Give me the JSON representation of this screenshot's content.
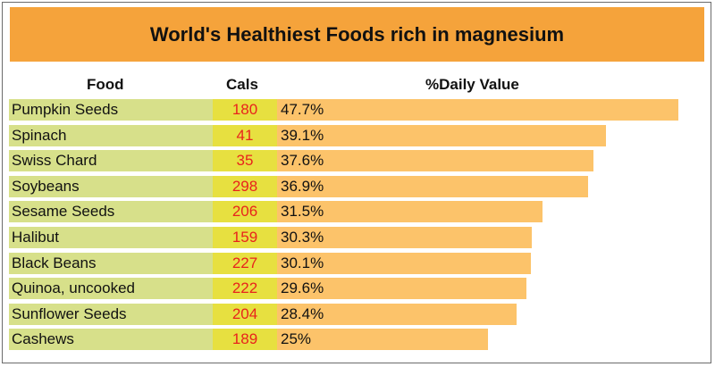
{
  "chart_data": {
    "type": "table",
    "title": "World's Healthiest Foods rich in magnesium",
    "columns": [
      "Food",
      "Cals",
      "%Daily Value"
    ],
    "rows": [
      {
        "food": "Pumpkin Seeds",
        "cals": "180",
        "dv_label": "47.7%",
        "dv": 47.7
      },
      {
        "food": "Spinach",
        "cals": "41",
        "dv_label": "39.1%",
        "dv": 39.1
      },
      {
        "food": "Swiss Chard",
        "cals": "35",
        "dv_label": "37.6%",
        "dv": 37.6
      },
      {
        "food": "Soybeans",
        "cals": "298",
        "dv_label": "36.9%",
        "dv": 36.9
      },
      {
        "food": "Sesame Seeds",
        "cals": "206",
        "dv_label": "31.5%",
        "dv": 31.5
      },
      {
        "food": "Halibut",
        "cals": "159",
        "dv_label": "30.3%",
        "dv": 30.3
      },
      {
        "food": "Black Beans",
        "cals": "227",
        "dv_label": "30.1%",
        "dv": 30.1
      },
      {
        "food": "Quinoa, uncooked",
        "cals": "222",
        "dv_label": "29.6%",
        "dv": 29.6
      },
      {
        "food": "Sunflower Seeds",
        "cals": "204",
        "dv_label": "28.4%",
        "dv": 28.4
      },
      {
        "food": "Cashews",
        "cals": "189",
        "dv_label": "25%",
        "dv": 25
      }
    ],
    "colors": {
      "title_bg": "#f5a33b",
      "food_cell": "#d7e08a",
      "cals_cell": "#e7e040",
      "cals_text": "#e8231c",
      "bar": "#fcc36a"
    }
  }
}
